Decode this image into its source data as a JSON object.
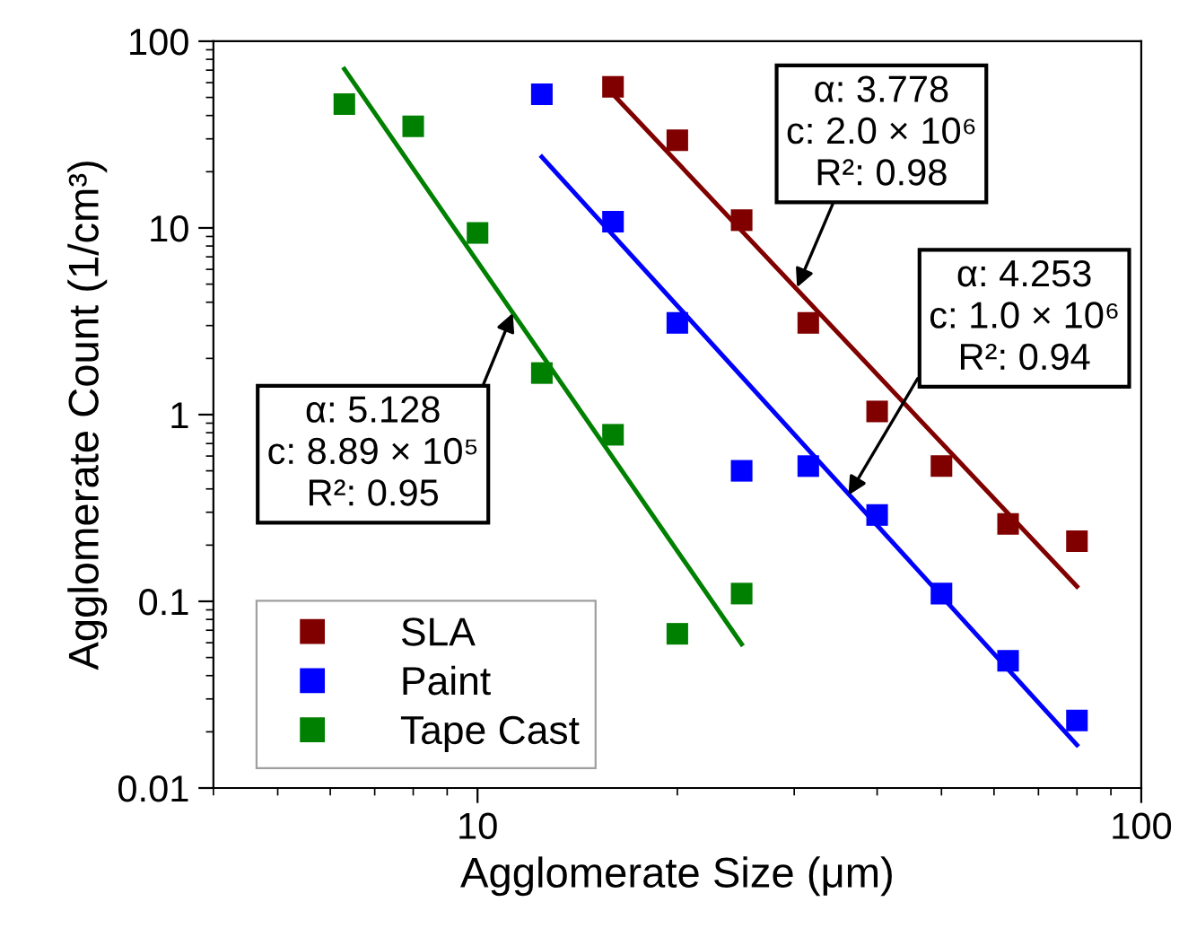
{
  "chart_data": {
    "type": "scatter",
    "xlabel": "Agglomerate Size (μm)",
    "ylabel": "Agglomerate Count (1/cm³)",
    "log": "xy",
    "xlim": [
      4,
      100
    ],
    "ylim": [
      0.01,
      100
    ],
    "xticks": [
      10,
      100
    ],
    "yticks": [
      0.01,
      0.1,
      1,
      10,
      100
    ],
    "grid": false,
    "legend": "bottom left",
    "marker": "square",
    "series": [
      {
        "name": "SLA",
        "color": "#800000",
        "x": [
          16,
          20,
          25,
          31.5,
          40,
          50,
          63,
          80
        ],
        "values": [
          57,
          29.5,
          11,
          3.1,
          1.04,
          0.53,
          0.26,
          0.21
        ]
      },
      {
        "name": "Paint",
        "color": "#0000ff",
        "x": [
          12.5,
          16,
          20,
          25,
          31.5,
          40,
          50,
          63,
          80
        ],
        "values": [
          52,
          10.8,
          3.1,
          0.5,
          0.53,
          0.29,
          0.11,
          0.048,
          0.023
        ]
      },
      {
        "name": "Tape Cast",
        "color": "#008000",
        "x": [
          6.3,
          8,
          10,
          12.5,
          16,
          20,
          25
        ],
        "values": [
          46,
          35,
          9.4,
          1.67,
          0.78,
          0.067,
          0.11
        ]
      },
      {
        "type": "line",
        "marker": "none",
        "color": "#800000",
        "x": [
          16,
          80
        ],
        "values": [
          52,
          0.12
        ]
      },
      {
        "type": "line",
        "marker": "none",
        "color": "#0000ff",
        "x": [
          12.5,
          80
        ],
        "values": [
          24,
          0.017
        ]
      },
      {
        "type": "line",
        "marker": "none",
        "color": "#008000",
        "x": [
          6.3,
          25
        ],
        "values": [
          71,
          0.059
        ]
      }
    ],
    "annotations": [
      {
        "text": "α: 3.778\nc: 2.0 × 10⁶\nR²: 0.98",
        "x": 30.3,
        "y": 4.8
      },
      {
        "text": "α: 4.253\nc: 1.0 × 10⁶\nR²: 0.94",
        "x": 36.2,
        "y": 0.37
      },
      {
        "text": "α: 5.128\nc: 8.89 × 10⁵\nR²: 0.95",
        "x": 11.3,
        "y": 3.5
      }
    ]
  }
}
